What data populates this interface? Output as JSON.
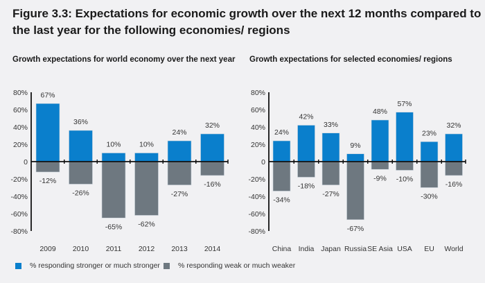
{
  "title": "Figure 3.3: Expectations for economic growth over the next 12 months compared to the last year for the following economies/ regions",
  "legend": {
    "stronger": "% responding stronger or much stronger",
    "weaker": "% responding weak or much weaker"
  },
  "colors": {
    "stronger": "#0a7fcc",
    "weaker": "#6e7880"
  },
  "chart_data": [
    {
      "type": "bar",
      "title": "Growth expectations for world economy over the next year",
      "categories": [
        "2009",
        "2010",
        "2011",
        "2012",
        "2013",
        "2014"
      ],
      "series": [
        {
          "name": "% responding stronger or much stronger",
          "values": [
            67,
            36,
            10,
            10,
            24,
            32
          ]
        },
        {
          "name": "% responding weak or much weaker",
          "values": [
            -12,
            -26,
            -65,
            -62,
            -27,
            -16
          ]
        }
      ],
      "ylim": [
        -80,
        80
      ],
      "yticks": [
        "80%",
        "60%",
        "40%",
        "20%",
        "0",
        "-20%",
        "-40%",
        "-60%",
        "-80%"
      ],
      "grid": false,
      "legend": "bottom"
    },
    {
      "type": "bar",
      "title": "Growth expectations for selected economies/ regions",
      "categories": [
        "China",
        "India",
        "Japan",
        "Russia",
        "SE Asia",
        "USA",
        "EU",
        "World"
      ],
      "series": [
        {
          "name": "% responding stronger or much stronger",
          "values": [
            24,
            42,
            33,
            9,
            48,
            57,
            23,
            32
          ]
        },
        {
          "name": "% responding weak or much weaker",
          "values": [
            -34,
            -18,
            -27,
            -67,
            -9,
            -10,
            -30,
            -16
          ]
        }
      ],
      "ylim": [
        -80,
        80
      ],
      "yticks": [
        "80%",
        "60%",
        "40%",
        "20%",
        "0",
        "-20%",
        "-40%",
        "-60%",
        "-80%"
      ],
      "grid": false,
      "legend": "bottom"
    }
  ]
}
